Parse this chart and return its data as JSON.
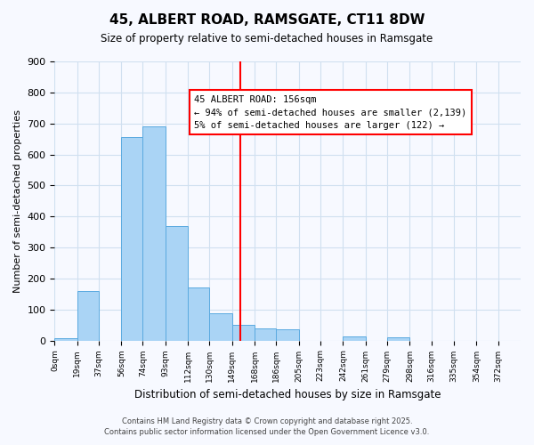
{
  "title": "45, ALBERT ROAD, RAMSGATE, CT11 8DW",
  "subtitle": "Size of property relative to semi-detached houses in Ramsgate",
  "xlabel": "Distribution of semi-detached houses by size in Ramsgate",
  "ylabel": "Number of semi-detached properties",
  "bin_labels": [
    "0sqm",
    "19sqm",
    "37sqm",
    "56sqm",
    "74sqm",
    "93sqm",
    "112sqm",
    "130sqm",
    "149sqm",
    "168sqm",
    "186sqm",
    "205sqm",
    "223sqm",
    "242sqm",
    "261sqm",
    "279sqm",
    "298sqm",
    "316sqm",
    "335sqm",
    "354sqm",
    "372sqm"
  ],
  "bin_edges": [
    0,
    19,
    37,
    56,
    74,
    93,
    112,
    130,
    149,
    168,
    186,
    205,
    223,
    242,
    261,
    279,
    298,
    316,
    335,
    354,
    372
  ],
  "bar_heights": [
    8,
    160,
    0,
    655,
    690,
    370,
    170,
    87,
    50,
    40,
    35,
    0,
    0,
    12,
    0,
    10,
    0,
    0,
    0,
    0
  ],
  "bar_color": "#aad4f5",
  "bar_edge_color": "#5aaae0",
  "grid_color": "#d0e0f0",
  "vline_x": 156,
  "vline_color": "red",
  "annotation_title": "45 ALBERT ROAD: 156sqm",
  "annotation_line1": "← 94% of semi-detached houses are smaller (2,139)",
  "annotation_line2": "5% of semi-detached houses are larger (122) →",
  "annotation_box_color": "#ffffff",
  "annotation_box_edge": "red",
  "ylim": [
    0,
    900
  ],
  "yticks": [
    0,
    100,
    200,
    300,
    400,
    500,
    600,
    700,
    800,
    900
  ],
  "footer_line1": "Contains HM Land Registry data © Crown copyright and database right 2025.",
  "footer_line2": "Contains public sector information licensed under the Open Government Licence v3.0.",
  "background_color": "#f7f9ff"
}
